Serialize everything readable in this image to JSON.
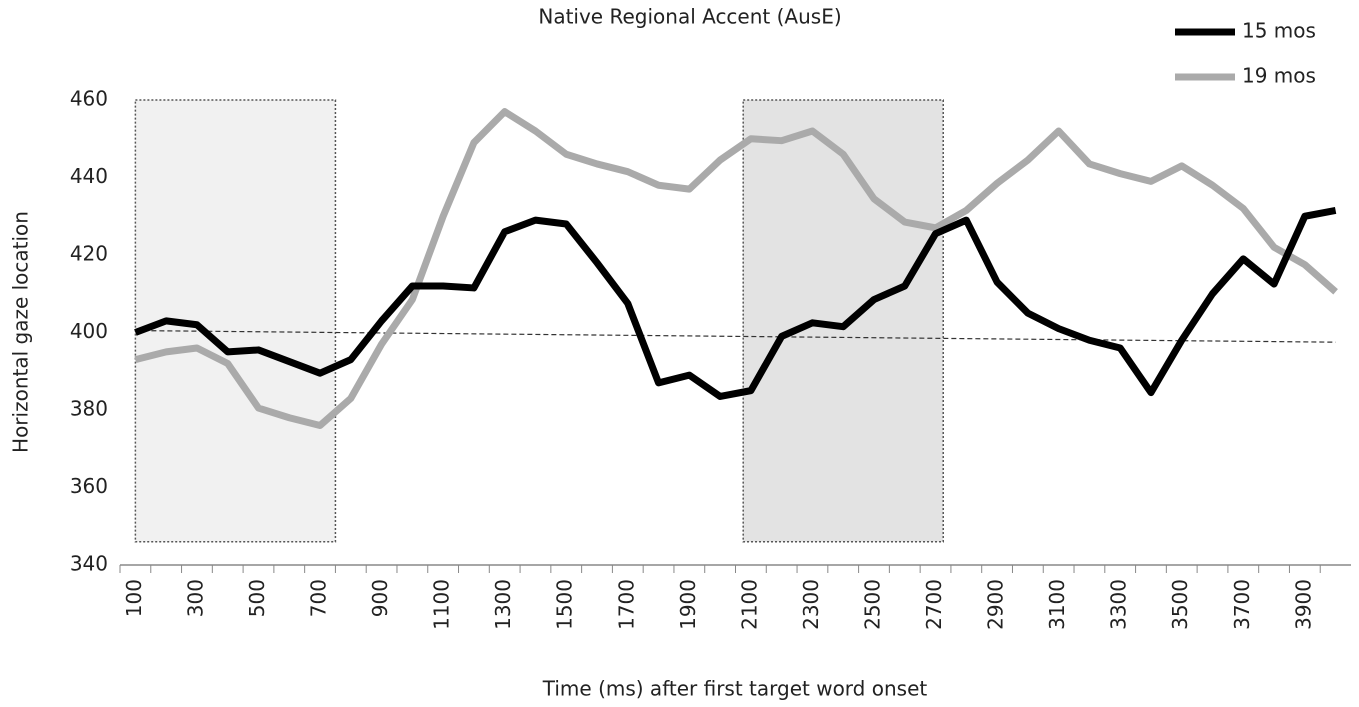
{
  "chart_data": {
    "type": "line",
    "title": "Native Regional Accent (AusE)",
    "x_label": "Time (ms) after first target word onset",
    "y_label": "Horizontal gaze location",
    "categories": [
      100,
      null,
      300,
      null,
      500,
      null,
      700,
      null,
      900,
      null,
      1100,
      null,
      1300,
      null,
      1500,
      null,
      1700,
      null,
      1900,
      null,
      2100,
      null,
      2300,
      null,
      2500,
      null,
      2700,
      null,
      2900,
      null,
      3100,
      null,
      3300,
      null,
      3500,
      null,
      3700,
      null,
      3900,
      null
    ],
    "series": [
      {
        "name": "15 mos",
        "color": "#000000",
        "values": [
          400,
          403,
          402,
          395,
          395.5,
          392.5,
          389.5,
          393,
          403,
          412,
          412,
          411.5,
          426,
          429,
          428,
          418,
          407.5,
          387,
          389,
          383.5,
          385,
          399,
          402.5,
          401.5,
          408.5,
          412,
          425.5,
          429,
          413,
          405,
          401,
          398,
          396,
          384.5,
          398,
          410,
          419,
          412.5,
          430,
          431.5
        ]
      },
      {
        "name": "19 mos",
        "color": "#aaaaaa",
        "values": [
          393,
          395,
          396,
          392,
          380.5,
          378,
          376,
          383,
          397,
          408.5,
          430,
          449,
          457,
          452,
          446,
          443.5,
          441.5,
          438,
          437,
          444.5,
          450,
          449.5,
          452,
          446,
          434.5,
          428.5,
          427,
          431.5,
          438.5,
          444.5,
          452,
          443.5,
          441,
          439,
          443,
          438,
          432,
          422,
          417.5,
          410.5
        ]
      }
    ],
    "reference_line": {
      "values": [
        400.5,
        397.5
      ],
      "color": "#333333"
    },
    "shaded_regions": [
      {
        "x": [
          100,
          750
        ],
        "y": [
          346,
          460
        ],
        "color": "#f1f1f1"
      },
      {
        "x": [
          2075,
          2725
        ],
        "y": [
          346,
          460
        ],
        "color": "#e3e3e3"
      }
    ],
    "ylim": [
      340,
      460
    ],
    "yticks": [
      340,
      360,
      380,
      400,
      420,
      440,
      460
    ],
    "legend": "upper right"
  }
}
